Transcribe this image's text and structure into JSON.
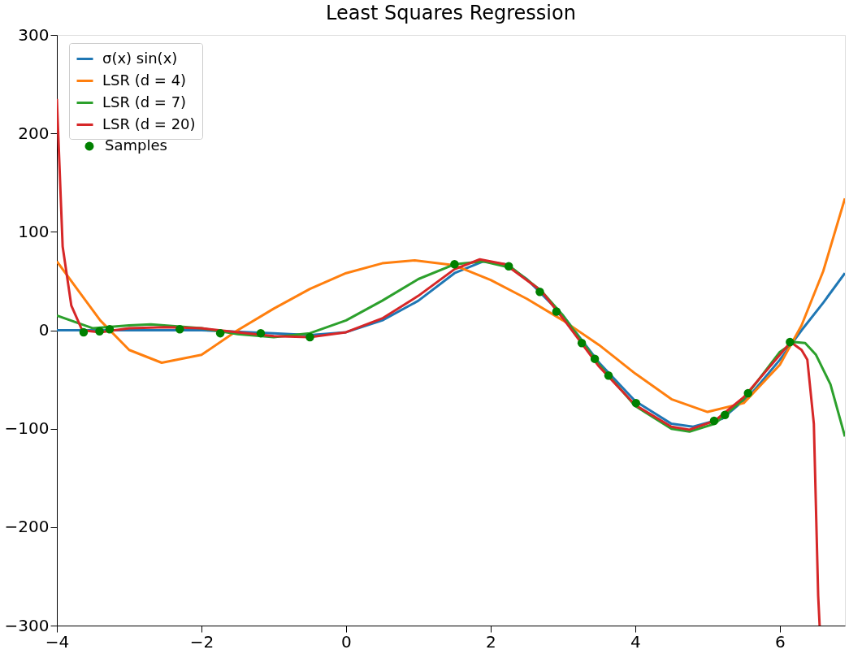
{
  "chart_data": {
    "type": "line",
    "title": "Least Squares Regression",
    "xlim": [
      -4,
      6.9
    ],
    "ylim": [
      -300,
      300
    ],
    "xticks": [
      -4,
      -2,
      0,
      2,
      4,
      6
    ],
    "yticks": [
      -300,
      -200,
      -100,
      0,
      100,
      200,
      300
    ],
    "grid": false,
    "legend": "top left",
    "marker": "none",
    "line_style": "solid",
    "series": [
      {
        "name": "σ(x) sin(x)",
        "color": "#1f77b4",
        "x": [
          -4,
          -2,
          -1,
          -0.5,
          0,
          0.5,
          1,
          1.5,
          1.9,
          2.2,
          2.5,
          3,
          3.5,
          4,
          4.5,
          4.8,
          5.2,
          5.6,
          6,
          6.3,
          6.6,
          6.9
        ],
        "values": [
          0,
          0,
          -3,
          -5,
          -2,
          10,
          30,
          58,
          70,
          67,
          52,
          15,
          -33,
          -72,
          -95,
          -98,
          -90,
          -65,
          -30,
          0,
          28,
          58
        ]
      },
      {
        "name": "LSR (d = 4)",
        "color": "#ff7f0e",
        "x": [
          -4,
          -3.7,
          -3.4,
          -3,
          -2.55,
          -2,
          -1.5,
          -1,
          -0.5,
          0,
          0.5,
          0.95,
          1.5,
          2,
          2.5,
          3,
          3.5,
          4,
          4.5,
          5,
          5.5,
          6,
          6.3,
          6.6,
          6.9
        ],
        "values": [
          70,
          40,
          10,
          -20,
          -33,
          -25,
          0,
          22,
          42,
          58,
          68,
          71,
          66,
          51,
          32,
          10,
          -15,
          -44,
          -70,
          -83,
          -74,
          -35,
          5,
          60,
          134
        ]
      },
      {
        "name": "LSR (d = 7)",
        "color": "#2ca02c",
        "x": [
          -4,
          -3.5,
          -3,
          -2.7,
          -2,
          -1.5,
          -1,
          -0.5,
          0,
          0.5,
          1,
          1.5,
          1.9,
          2.3,
          2.7,
          3,
          3.5,
          4,
          4.5,
          4.75,
          5.1,
          5.5,
          6,
          6.2,
          6.35,
          6.5,
          6.7,
          6.9
        ],
        "values": [
          15,
          2,
          5,
          6,
          2,
          -4,
          -7,
          -3,
          10,
          30,
          52,
          67,
          70,
          63,
          40,
          15,
          -35,
          -77,
          -100,
          -103,
          -95,
          -70,
          -22,
          -12,
          -13,
          -25,
          -55,
          -108
        ]
      },
      {
        "name": "LSR (d = 20)",
        "color": "#d62728",
        "x": [
          -4,
          -3.92,
          -3.8,
          -3.65,
          -3.4,
          -3,
          -2.5,
          -2,
          -1.5,
          -1,
          -0.5,
          0,
          0.5,
          1,
          1.5,
          1.85,
          2.2,
          2.7,
          3,
          3.5,
          4,
          4.5,
          4.75,
          5.1,
          5.5,
          6,
          6.15,
          6.3,
          6.38,
          6.47,
          6.53,
          6.55
        ],
        "values": [
          235,
          85,
          25,
          0,
          -2,
          2,
          3,
          2,
          -2,
          -6,
          -7,
          -2,
          12,
          35,
          62,
          72,
          67,
          40,
          12,
          -37,
          -76,
          -98,
          -101,
          -92,
          -68,
          -25,
          -12,
          -20,
          -30,
          -95,
          -270,
          -300
        ]
      },
      {
        "name": "Samples",
        "type": "scatter",
        "marker": "circle",
        "color": "#008000",
        "x": [
          -3.63,
          -3.41,
          -3.27,
          -2.3,
          -1.74,
          -1.18,
          -0.5,
          1.5,
          2.25,
          2.68,
          2.91,
          3.26,
          3.44,
          3.63,
          4.01,
          5.09,
          5.24,
          5.56,
          6.14
        ],
        "values": [
          -2,
          -1,
          1,
          1,
          -3,
          -3,
          -7,
          67,
          65,
          39,
          19,
          -13,
          -29,
          -46,
          -74,
          -92,
          -86,
          -64,
          -12
        ]
      }
    ]
  }
}
